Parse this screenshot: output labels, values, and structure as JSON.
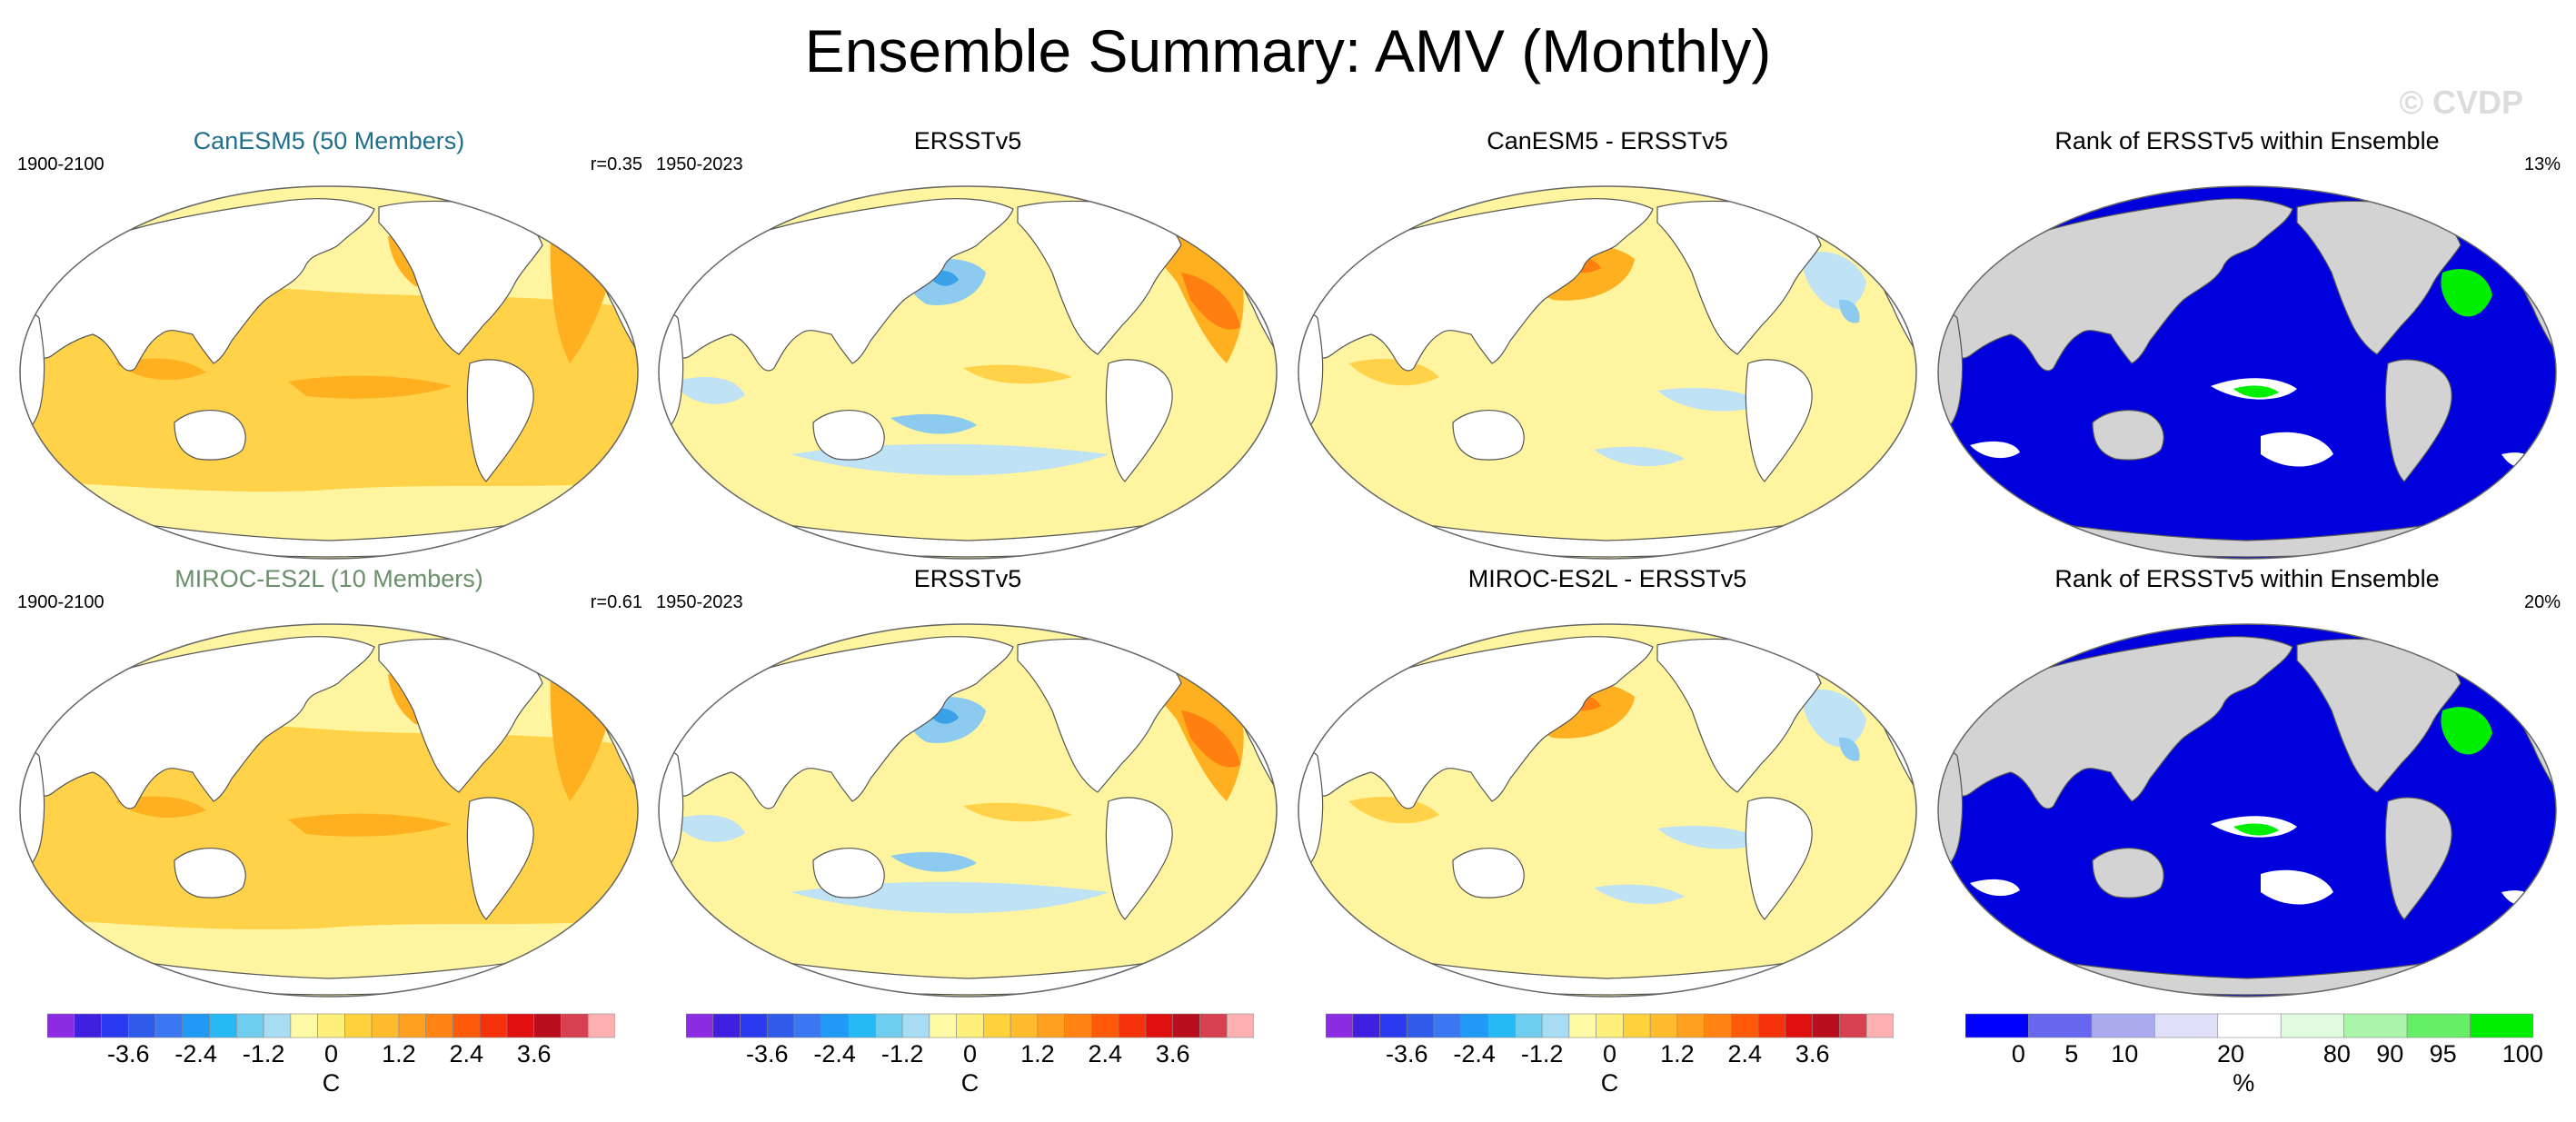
{
  "figure": {
    "title": "Ensemble Summary: AMV (Monthly)",
    "watermark": "© CVDP"
  },
  "rows": [
    {
      "panels": [
        {
          "title": "CanESM5 (50 Members)",
          "title_color": "#1f6f8b",
          "left": "1900-2100",
          "right": "r=0.35",
          "kind": "model"
        },
        {
          "title": "ERSSTv5",
          "title_color": "#000000",
          "left": "1950-2023",
          "right": "",
          "kind": "obs"
        },
        {
          "title": "CanESM5 - ERSSTv5",
          "title_color": "#000000",
          "left": "",
          "right": "",
          "kind": "diff"
        },
        {
          "title": "Rank of ERSSTv5 within Ensemble",
          "title_color": "#000000",
          "left": "",
          "right": "13%",
          "kind": "rank"
        }
      ]
    },
    {
      "panels": [
        {
          "title": "MIROC-ES2L (10 Members)",
          "title_color": "#6b8e6b",
          "left": "1900-2100",
          "right": "r=0.61",
          "kind": "model"
        },
        {
          "title": "ERSSTv5",
          "title_color": "#000000",
          "left": "1950-2023",
          "right": "",
          "kind": "obs"
        },
        {
          "title": "MIROC-ES2L - ERSSTv5",
          "title_color": "#000000",
          "left": "",
          "right": "",
          "kind": "diff"
        },
        {
          "title": "Rank of ERSSTv5 within Ensemble",
          "title_color": "#000000",
          "left": "",
          "right": "20%",
          "kind": "rank"
        }
      ]
    }
  ],
  "colorbars": {
    "temperature": {
      "unit": "C",
      "ticks": [
        "-3.6",
        "-2.4",
        "-1.2",
        "0",
        "1.2",
        "2.4",
        "3.6"
      ],
      "colors": [
        "#8b2be2",
        "#3f1fe0",
        "#2a3af0",
        "#2f5bea",
        "#3a78f2",
        "#1f9bf5",
        "#26b9f5",
        "#6fcdf0",
        "#a8dcf2",
        "#fffaa6",
        "#fff07a",
        "#ffd23c",
        "#ffbd2e",
        "#ffa11e",
        "#ff8414",
        "#ff5a0a",
        "#f5320a",
        "#e01010",
        "#b90e1e",
        "#d64050",
        "#ffb0b0"
      ]
    },
    "rank": {
      "unit": "%",
      "ticks": [
        "0",
        "5",
        "10",
        "20",
        "80",
        "90",
        "95",
        "100"
      ],
      "colors": [
        "#0000ff",
        "#6666ee",
        "#aaaaee",
        "#e0e0fa",
        "#ffffff",
        "#e0fbe0",
        "#aaf5aa",
        "#66ee66",
        "#00ee00"
      ]
    }
  },
  "palette": {
    "land": "#ffffff",
    "land_rank": "#d3d3d3",
    "ocean_rank": "#0000dd",
    "warm_light": "#fff5a0",
    "warm": "#ffd24a",
    "warm_mid": "#ffb020",
    "warm_deep": "#ff8010",
    "warm_red": "#ee3010",
    "cool_light": "#bfe2f5",
    "cool": "#8ccaf0",
    "cool_deep": "#3aa0e8",
    "rank_green": "#00ee00",
    "rank_white": "#ffffff"
  }
}
